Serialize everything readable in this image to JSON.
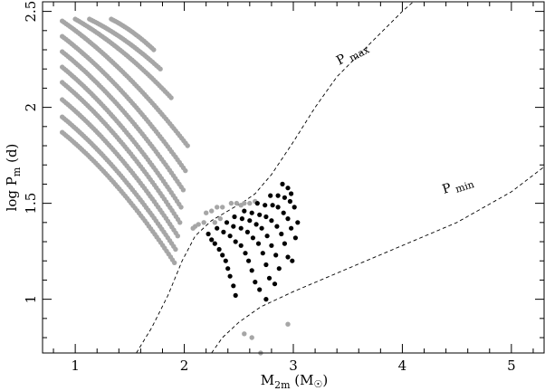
{
  "chart_data": {
    "type": "scatter",
    "xlabel": {
      "main": "M",
      "sub": "2m",
      "unit_open": " (M",
      "unit_close": ")"
    },
    "ylabel": {
      "main": "log P",
      "sub": "m",
      "unit": "  (d)"
    },
    "xlim": [
      0.7,
      5.3
    ],
    "ylim": [
      0.72,
      2.55
    ],
    "x_major_ticks": [
      1,
      2,
      3,
      4,
      5
    ],
    "x_minor_step": 0.2,
    "y_major_ticks": [
      1,
      1.5,
      2,
      2.5
    ],
    "y_minor_step": 0.1,
    "grid": false,
    "colors": {
      "gray_series": "#a6a6a6",
      "black_series": "#000000",
      "frame": "#000000"
    },
    "series": [
      {
        "marker": "gray",
        "tracks": [
          {
            "x0": 0.88,
            "x1": 1.91,
            "y0": 1.87,
            "y1": 1.19
          },
          {
            "x0": 0.88,
            "x1": 1.92,
            "y0": 1.95,
            "y1": 1.26
          },
          {
            "x0": 0.88,
            "x1": 1.94,
            "y0": 2.04,
            "y1": 1.33
          },
          {
            "x0": 0.88,
            "x1": 1.96,
            "y0": 2.13,
            "y1": 1.4
          },
          {
            "x0": 0.88,
            "x1": 1.97,
            "y0": 2.21,
            "y1": 1.48
          },
          {
            "x0": 0.88,
            "x1": 1.99,
            "y0": 2.29,
            "y1": 1.57
          },
          {
            "x0": 0.88,
            "x1": 2.01,
            "y0": 2.37,
            "y1": 1.67
          },
          {
            "x0": 0.88,
            "x1": 2.03,
            "y0": 2.45,
            "y1": 1.8
          },
          {
            "x0": 1.0,
            "x1": 1.88,
            "y0": 2.46,
            "y1": 2.05
          },
          {
            "x0": 1.13,
            "x1": 1.78,
            "y0": 2.46,
            "y1": 2.2
          },
          {
            "x0": 1.33,
            "x1": 1.72,
            "y0": 2.46,
            "y1": 2.3
          }
        ],
        "points": [
          [
            2.08,
            1.37
          ],
          [
            2.1,
            1.38
          ],
          [
            2.13,
            1.39
          ],
          [
            2.18,
            1.4
          ],
          [
            2.2,
            1.45
          ],
          [
            2.25,
            1.46
          ],
          [
            2.3,
            1.48
          ],
          [
            2.35,
            1.48
          ],
          [
            2.43,
            1.5
          ],
          [
            2.48,
            1.5
          ],
          [
            2.55,
            1.5
          ],
          [
            2.6,
            1.5
          ],
          [
            2.65,
            1.51
          ],
          [
            2.28,
            1.4
          ],
          [
            2.33,
            1.42
          ],
          [
            2.52,
            1.49
          ],
          [
            2.55,
            0.82
          ],
          [
            2.62,
            0.8
          ],
          [
            2.7,
            0.72
          ],
          [
            2.95,
            0.87
          ]
        ]
      },
      {
        "marker": "black",
        "points": [
          [
            2.22,
            1.34
          ],
          [
            2.25,
            1.31
          ],
          [
            2.28,
            1.29
          ],
          [
            2.32,
            1.26
          ],
          [
            2.35,
            1.23
          ],
          [
            2.38,
            1.2
          ],
          [
            2.4,
            1.16
          ],
          [
            2.42,
            1.12
          ],
          [
            2.45,
            1.07
          ],
          [
            2.47,
            1.02
          ],
          [
            2.3,
            1.37
          ],
          [
            2.36,
            1.35
          ],
          [
            2.42,
            1.33
          ],
          [
            2.47,
            1.3
          ],
          [
            2.52,
            1.28
          ],
          [
            2.56,
            1.24
          ],
          [
            2.59,
            1.2
          ],
          [
            2.62,
            1.15
          ],
          [
            2.65,
            1.09
          ],
          [
            2.69,
            1.05
          ],
          [
            2.39,
            1.4
          ],
          [
            2.45,
            1.38
          ],
          [
            2.52,
            1.37
          ],
          [
            2.58,
            1.35
          ],
          [
            2.63,
            1.32
          ],
          [
            2.68,
            1.29
          ],
          [
            2.72,
            1.24
          ],
          [
            2.75,
            1.18
          ],
          [
            2.78,
            1.11
          ],
          [
            2.83,
            1.08
          ],
          [
            2.46,
            1.43
          ],
          [
            2.53,
            1.42
          ],
          [
            2.6,
            1.41
          ],
          [
            2.66,
            1.39
          ],
          [
            2.71,
            1.37
          ],
          [
            2.76,
            1.33
          ],
          [
            2.8,
            1.28
          ],
          [
            2.84,
            1.23
          ],
          [
            2.87,
            1.16
          ],
          [
            2.55,
            1.46
          ],
          [
            2.62,
            1.45
          ],
          [
            2.69,
            1.44
          ],
          [
            2.75,
            1.43
          ],
          [
            2.8,
            1.41
          ],
          [
            2.85,
            1.38
          ],
          [
            2.89,
            1.34
          ],
          [
            2.92,
            1.29
          ],
          [
            2.95,
            1.22
          ],
          [
            2.99,
            1.2
          ],
          [
            2.67,
            1.5
          ],
          [
            2.74,
            1.49
          ],
          [
            2.81,
            1.49
          ],
          [
            2.86,
            1.48
          ],
          [
            2.91,
            1.45
          ],
          [
            2.95,
            1.42
          ],
          [
            2.98,
            1.37
          ],
          [
            3.02,
            1.32
          ],
          [
            2.79,
            1.54
          ],
          [
            2.86,
            1.54
          ],
          [
            2.92,
            1.53
          ],
          [
            2.97,
            1.51
          ],
          [
            3.01,
            1.48
          ],
          [
            3.04,
            1.4
          ],
          [
            2.9,
            1.6
          ],
          [
            2.95,
            1.58
          ],
          [
            2.98,
            1.55
          ],
          [
            2.75,
            1.0
          ]
        ]
      }
    ],
    "curves": [
      {
        "name": "P max",
        "label": "P",
        "label_sub": "max",
        "points": [
          [
            1.56,
            0.71
          ],
          [
            1.7,
            0.85
          ],
          [
            1.85,
            1.02
          ],
          [
            1.98,
            1.2
          ],
          [
            2.1,
            1.33
          ],
          [
            2.25,
            1.41
          ],
          [
            2.4,
            1.46
          ],
          [
            2.55,
            1.51
          ],
          [
            2.65,
            1.55
          ],
          [
            2.8,
            1.65
          ],
          [
            3.0,
            1.82
          ],
          [
            3.2,
            2.0
          ],
          [
            3.4,
            2.16
          ],
          [
            3.7,
            2.33
          ],
          [
            4.0,
            2.5
          ],
          [
            4.1,
            2.56
          ]
        ]
      },
      {
        "name": "P min",
        "label": "P",
        "label_sub": "min",
        "points": [
          [
            2.25,
            0.71
          ],
          [
            2.35,
            0.8
          ],
          [
            2.5,
            0.88
          ],
          [
            2.7,
            0.96
          ],
          [
            3.0,
            1.04
          ],
          [
            3.5,
            1.16
          ],
          [
            4.0,
            1.28
          ],
          [
            4.5,
            1.4
          ],
          [
            5.0,
            1.56
          ],
          [
            5.3,
            1.69
          ]
        ]
      }
    ]
  }
}
